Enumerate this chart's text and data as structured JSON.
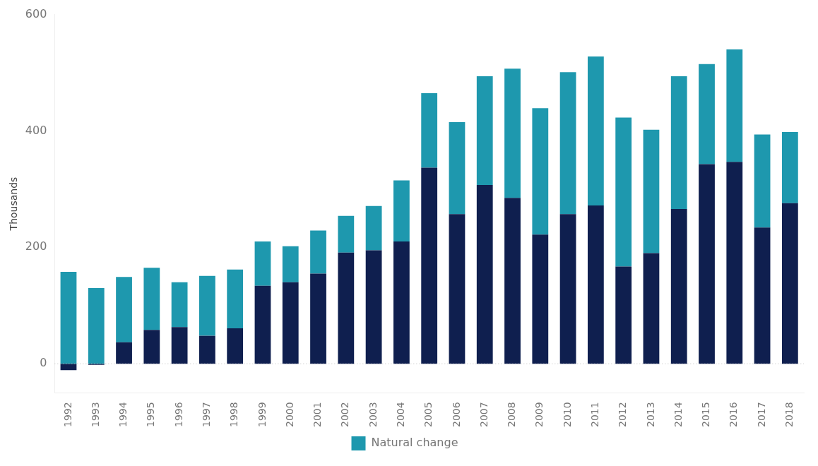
{
  "chart_data": {
    "type": "bar",
    "ylabel": "Thousands",
    "stacked": true,
    "categories": [
      "1992",
      "1993",
      "1994",
      "1995",
      "1996",
      "1997",
      "1998",
      "1999",
      "2000",
      "2001",
      "2002",
      "2003",
      "2004",
      "2005",
      "2006",
      "2007",
      "2008",
      "2009",
      "2010",
      "2011",
      "2012",
      "2013",
      "2014",
      "2015",
      "2016",
      "2017",
      "2018"
    ],
    "series": [
      {
        "color": "#0f1f4f",
        "values": [
          -11,
          -2,
          37,
          58,
          63,
          48,
          61,
          134,
          140,
          155,
          191,
          195,
          210,
          337,
          257,
          307,
          285,
          222,
          257,
          272,
          167,
          190,
          266,
          343,
          347,
          234,
          276
        ]
      },
      {
        "name": "Natural change",
        "color": "#1e98ae",
        "values": [
          158,
          130,
          112,
          107,
          77,
          103,
          101,
          76,
          62,
          74,
          63,
          76,
          105,
          128,
          158,
          187,
          222,
          217,
          244,
          256,
          256,
          212,
          228,
          172,
          193,
          160,
          122
        ]
      }
    ],
    "ylim": [
      -50,
      600
    ],
    "yticks": [
      0,
      200,
      400,
      600
    ],
    "grid": false,
    "legend": "bottom",
    "ref_lines": [
      {
        "axis": "y",
        "value": 0,
        "line_style": "dotted",
        "color": "#bbbbbb"
      }
    ]
  }
}
